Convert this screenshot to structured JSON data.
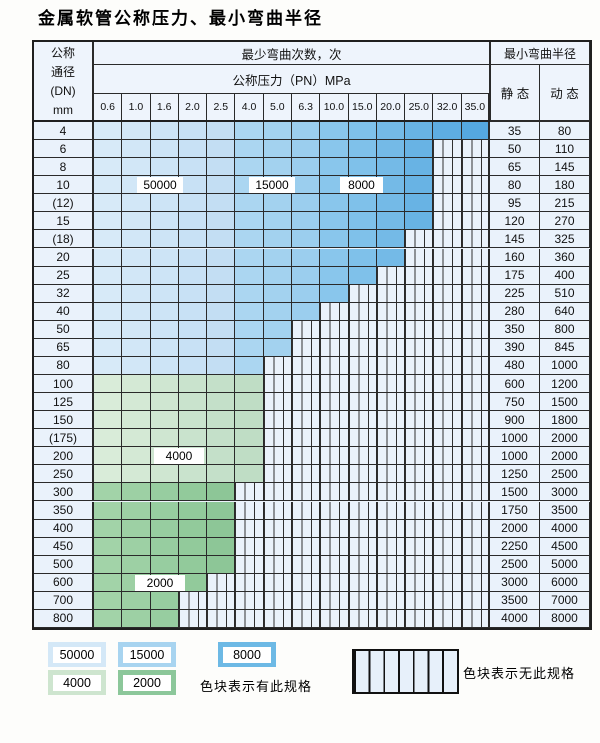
{
  "title": "金属软管公称压力、最小弯曲半径",
  "table": {
    "header": {
      "dn_lines": [
        "公称",
        "通径",
        "(DN)",
        "mm"
      ],
      "bend_cycles_label": "最少弯曲次数，次",
      "pressure_label": "公称压力（PN）MPa",
      "radius_label": "最小弯曲半径",
      "static_label": "静 态",
      "dynamic_label": "动 态",
      "pressures": [
        "0.6",
        "1.0",
        "1.6",
        "2.0",
        "2.5",
        "4.0",
        "5.0",
        "6.3",
        "10.0",
        "15.0",
        "20.0",
        "25.0",
        "32.0",
        "35.0"
      ]
    },
    "rows": [
      {
        "dn": "4",
        "group": "blue",
        "available_cols": 14,
        "static": "35",
        "dynamic": "80"
      },
      {
        "dn": "6",
        "group": "blue",
        "available_cols": 12,
        "static": "50",
        "dynamic": "110"
      },
      {
        "dn": "8",
        "group": "blue",
        "available_cols": 12,
        "static": "65",
        "dynamic": "145"
      },
      {
        "dn": "10",
        "group": "blue",
        "available_cols": 12,
        "static": "80",
        "dynamic": "180"
      },
      {
        "dn": "(12)",
        "group": "blue",
        "available_cols": 12,
        "static": "95",
        "dynamic": "215"
      },
      {
        "dn": "15",
        "group": "blue",
        "available_cols": 12,
        "static": "120",
        "dynamic": "270"
      },
      {
        "dn": "(18)",
        "group": "blue",
        "available_cols": 11,
        "static": "145",
        "dynamic": "325"
      },
      {
        "dn": "20",
        "group": "blue",
        "available_cols": 11,
        "static": "160",
        "dynamic": "360"
      },
      {
        "dn": "25",
        "group": "blue",
        "available_cols": 10,
        "static": "175",
        "dynamic": "400"
      },
      {
        "dn": "32",
        "group": "blue",
        "available_cols": 9,
        "static": "225",
        "dynamic": "510"
      },
      {
        "dn": "40",
        "group": "blue",
        "available_cols": 8,
        "static": "280",
        "dynamic": "640"
      },
      {
        "dn": "50",
        "group": "blue",
        "available_cols": 7,
        "static": "350",
        "dynamic": "800"
      },
      {
        "dn": "65",
        "group": "blue",
        "available_cols": 7,
        "static": "390",
        "dynamic": "845"
      },
      {
        "dn": "80",
        "group": "blue",
        "available_cols": 6,
        "static": "480",
        "dynamic": "1000"
      },
      {
        "dn": "100",
        "group": "green-light",
        "available_cols": 6,
        "static": "600",
        "dynamic": "1200"
      },
      {
        "dn": "125",
        "group": "green-light",
        "available_cols": 6,
        "static": "750",
        "dynamic": "1500"
      },
      {
        "dn": "150",
        "group": "green-light",
        "available_cols": 6,
        "static": "900",
        "dynamic": "1800"
      },
      {
        "dn": "(175)",
        "group": "green-light",
        "available_cols": 6,
        "static": "1000",
        "dynamic": "2000"
      },
      {
        "dn": "200",
        "group": "green-light",
        "available_cols": 6,
        "static": "1000",
        "dynamic": "2000"
      },
      {
        "dn": "250",
        "group": "green-light",
        "available_cols": 6,
        "static": "1250",
        "dynamic": "2500"
      },
      {
        "dn": "300",
        "group": "green-dark",
        "available_cols": 5,
        "static": "1500",
        "dynamic": "3000"
      },
      {
        "dn": "350",
        "group": "green-dark",
        "available_cols": 5,
        "static": "1750",
        "dynamic": "3500"
      },
      {
        "dn": "400",
        "group": "green-dark",
        "available_cols": 5,
        "static": "2000",
        "dynamic": "4000"
      },
      {
        "dn": "450",
        "group": "green-dark",
        "available_cols": 5,
        "static": "2250",
        "dynamic": "4500"
      },
      {
        "dn": "500",
        "group": "green-dark",
        "available_cols": 5,
        "static": "2500",
        "dynamic": "5000"
      },
      {
        "dn": "600",
        "group": "green-dark",
        "available_cols": 4,
        "static": "3000",
        "dynamic": "6000"
      },
      {
        "dn": "700",
        "group": "green-dark",
        "available_cols": 3,
        "static": "3500",
        "dynamic": "7000"
      },
      {
        "dn": "800",
        "group": "green-dark",
        "available_cols": 3,
        "static": "4000",
        "dynamic": "8000"
      }
    ],
    "overlay_labels": [
      {
        "text": "50000",
        "at_dn": "10"
      },
      {
        "text": "15000",
        "at_dn": "10"
      },
      {
        "text": "8000",
        "at_dn": "10"
      },
      {
        "text": "4000",
        "at_dn": "200"
      },
      {
        "text": "2000",
        "at_dn": "600"
      }
    ]
  },
  "colors": {
    "zone_50000": "#c9e2f5",
    "zone_15000": "#a3d2ef",
    "zone_8000": "#6db9e5",
    "zone_4000": "#cee5cf",
    "zone_2000": "#8cc79a",
    "empty_cell_bg": "#eaf2fb",
    "grid_line": "#2a2a2a"
  },
  "legend": {
    "items": [
      {
        "label": "50000",
        "color": "#d4e8f7"
      },
      {
        "label": "15000",
        "color": "#a8d4f0"
      },
      {
        "label": "8000",
        "color": "#6db9e5"
      },
      {
        "label": "4000",
        "color": "#cee5cf"
      },
      {
        "label": "2000",
        "color": "#8cc79a"
      }
    ],
    "has_spec_text": "色块表示有此规格",
    "no_spec_text": "色块表示无此规格"
  }
}
